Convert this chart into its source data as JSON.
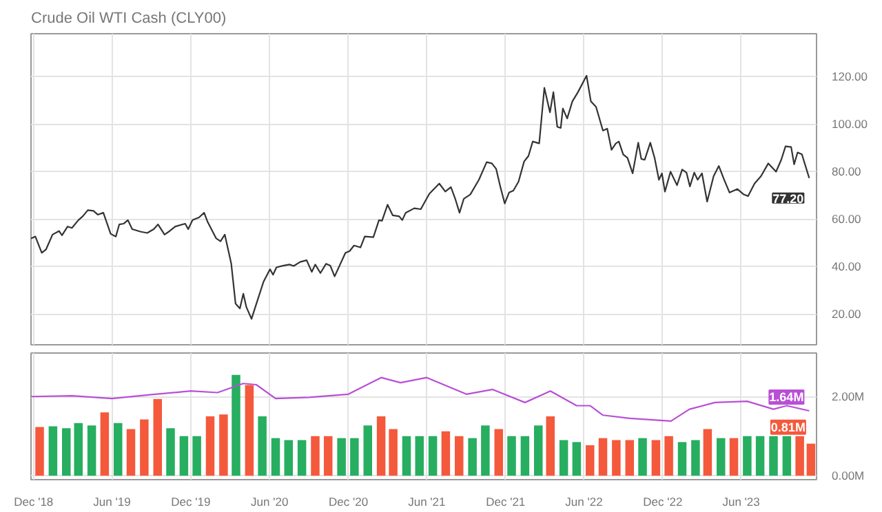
{
  "chart_data": [
    {
      "type": "line",
      "title": "Crude Oil WTI Cash (CLY00)",
      "color": "#333333",
      "tick_labels": "y",
      "grid": true,
      "x": [
        "2018-11-25",
        "2018-12-05",
        "2018-12-20",
        "2018-12-30",
        "2019-01-14",
        "2019-01-29",
        "2019-02-05",
        "2019-02-18",
        "2019-02-28",
        "2019-03-15",
        "2019-03-25",
        "2019-04-06",
        "2019-04-19",
        "2019-04-29",
        "2019-05-12",
        "2019-05-29",
        "2019-06-10",
        "2019-06-18",
        "2019-06-28",
        "2019-07-08",
        "2019-07-18",
        "2019-08-07",
        "2019-08-22",
        "2019-09-06",
        "2019-09-16",
        "2019-10-01",
        "2019-10-13",
        "2019-10-26",
        "2019-11-18",
        "2019-11-25",
        "2019-12-05",
        "2019-12-20",
        "2020-01-01",
        "2020-01-09",
        "2020-01-29",
        "2020-02-08",
        "2020-02-18",
        "2020-03-04",
        "2020-03-14",
        "2020-03-24",
        "2020-04-01",
        "2020-04-08",
        "2020-04-20",
        "2020-05-03",
        "2020-05-18",
        "2020-06-02",
        "2020-06-09",
        "2020-06-17",
        "2020-07-02",
        "2020-07-17",
        "2020-07-27",
        "2020-08-11",
        "2020-08-26",
        "2020-09-07",
        "2020-09-15",
        "2020-09-27",
        "2020-10-10",
        "2020-10-20",
        "2020-10-30",
        "2020-11-24",
        "2020-12-04",
        "2020-12-14",
        "2020-12-29",
        "2021-01-08",
        "2021-01-28",
        "2021-02-10",
        "2021-02-17",
        "2021-03-02",
        "2021-03-14",
        "2021-03-29",
        "2021-04-05",
        "2021-04-13",
        "2021-05-03",
        "2021-05-18",
        "2021-06-07",
        "2021-06-30",
        "2021-07-14",
        "2021-07-27",
        "2021-08-06",
        "2021-08-16",
        "2021-08-26",
        "2021-09-10",
        "2021-09-30",
        "2021-10-18",
        "2021-10-30",
        "2021-11-09",
        "2021-11-19",
        "2021-11-29",
        "2021-12-09",
        "2021-12-19",
        "2021-12-31",
        "2022-01-13",
        "2022-01-23",
        "2022-02-02",
        "2022-02-17",
        "2022-03-01",
        "2022-03-14",
        "2022-03-22",
        "2022-03-31",
        "2022-04-08",
        "2022-04-13",
        "2022-04-23",
        "2022-05-05",
        "2022-05-18",
        "2022-06-07",
        "2022-06-17",
        "2022-06-29",
        "2022-07-15",
        "2022-07-25",
        "2022-08-04",
        "2022-08-14",
        "2022-08-21",
        "2022-08-31",
        "2022-09-10",
        "2022-09-22",
        "2022-10-05",
        "2022-10-12",
        "2022-10-20",
        "2022-11-02",
        "2022-11-12",
        "2022-11-22",
        "2022-11-29",
        "2022-12-06",
        "2022-12-19",
        "2023-01-03",
        "2023-01-15",
        "2023-01-25",
        "2023-02-02",
        "2023-02-12",
        "2023-02-20",
        "2023-03-02",
        "2023-03-14",
        "2023-03-29",
        "2023-04-10",
        "2023-04-21",
        "2023-05-05",
        "2023-05-23",
        "2023-06-07",
        "2023-06-17",
        "2023-07-02",
        "2023-07-17",
        "2023-08-03",
        "2023-08-21",
        "2023-09-02",
        "2023-09-12",
        "2023-09-25",
        "2023-10-02",
        "2023-10-10",
        "2023-10-20",
        "2023-11-06"
      ],
      "values": [
        51.8,
        52.6,
        45.7,
        47.2,
        53.4,
        54.9,
        53.1,
        56.8,
        56.2,
        59.5,
        61.1,
        63.7,
        63.4,
        61.8,
        62.6,
        53.7,
        52.6,
        57.7,
        58.0,
        59.5,
        55.7,
        54.6,
        54.1,
        55.7,
        57.7,
        53.4,
        54.9,
        56.8,
        58.0,
        55.7,
        59.5,
        60.6,
        62.6,
        58.8,
        51.8,
        50.6,
        53.4,
        41.1,
        24.3,
        22.3,
        28.5,
        22.9,
        17.9,
        25.2,
        33.6,
        38.8,
        36.5,
        39.6,
        40.3,
        40.8,
        40.2,
        41.9,
        42.6,
        37.7,
        40.8,
        37.2,
        41.1,
        40.3,
        35.8,
        45.7,
        46.5,
        48.8,
        48.0,
        52.6,
        52.3,
        59.5,
        59.2,
        66.0,
        61.5,
        61.1,
        59.5,
        62.6,
        64.5,
        64.1,
        70.6,
        74.9,
        71.5,
        73.4,
        68.5,
        62.6,
        68.5,
        70.3,
        76.5,
        83.9,
        83.4,
        81.1,
        73.4,
        66.5,
        71.1,
        71.9,
        75.7,
        84.2,
        86.5,
        92.6,
        91.8,
        115.2,
        104.9,
        113.4,
        98.8,
        98.3,
        106.5,
        102.3,
        109.5,
        113.4,
        120.3,
        109.5,
        107.2,
        97.2,
        98.0,
        89.1,
        91.8,
        92.6,
        87.2,
        85.7,
        79.2,
        92.1,
        85.3,
        84.9,
        92.1,
        85.7,
        76.5,
        79.2,
        71.5,
        79.9,
        74.2,
        80.8,
        79.5,
        73.7,
        79.5,
        76.5,
        79.2,
        67.3,
        78.0,
        82.3,
        77.2,
        71.1,
        72.6,
        70.3,
        69.6,
        74.9,
        78.0,
        83.4,
        79.9,
        84.9,
        90.6,
        90.3,
        83.0,
        88.0,
        87.2,
        77.2
      ],
      "xlim": [
        "2018-11-25",
        "2023-11-23"
      ],
      "xticks": [
        {
          "value": "2018-12-01",
          "label": null
        },
        {
          "value": "2019-06-01",
          "label": null
        },
        {
          "value": "2019-12-01",
          "label": null
        },
        {
          "value": "2020-06-01",
          "label": null
        },
        {
          "value": "2020-12-01",
          "label": null
        },
        {
          "value": "2021-06-01",
          "label": null
        },
        {
          "value": "2021-12-01",
          "label": null
        },
        {
          "value": "2022-06-01",
          "label": null
        },
        {
          "value": "2022-12-01",
          "label": null
        },
        {
          "value": "2023-06-01",
          "label": null
        }
      ],
      "ylim": [
        7,
        138
      ],
      "yticks": [
        {
          "value": 20,
          "label": "20.00"
        },
        {
          "value": 40,
          "label": "40.00"
        },
        {
          "value": 60,
          "label": "60.00"
        },
        {
          "value": 80,
          "label": "80.00"
        },
        {
          "value": 100,
          "label": "100.00"
        },
        {
          "value": 120,
          "label": "120.00"
        }
      ],
      "annotations": [
        {
          "text": "77.20",
          "x": "2023-11-06",
          "y": 77.2
        }
      ]
    },
    {
      "type": "bar",
      "grid": true,
      "series": [
        {
          "type": "bar",
          "x": [
            "2018-12-15",
            "2019-01-15",
            "2019-02-15",
            "2019-03-15",
            "2019-04-15",
            "2019-05-15",
            "2019-06-15",
            "2019-07-15",
            "2019-08-15",
            "2019-09-15",
            "2019-10-15",
            "2019-11-15",
            "2019-12-15",
            "2020-01-15",
            "2020-02-15",
            "2020-03-15",
            "2020-04-15",
            "2020-05-15",
            "2020-06-15",
            "2020-07-15",
            "2020-08-15",
            "2020-09-15",
            "2020-10-15",
            "2020-11-15",
            "2020-12-15",
            "2021-01-15",
            "2021-02-15",
            "2021-03-15",
            "2021-04-15",
            "2021-05-15",
            "2021-06-15",
            "2021-07-15",
            "2021-08-15",
            "2021-09-15",
            "2021-10-15",
            "2021-11-15",
            "2021-12-15",
            "2022-01-15",
            "2022-02-15",
            "2022-03-15",
            "2022-04-15",
            "2022-05-15",
            "2022-06-15",
            "2022-07-15",
            "2022-08-15",
            "2022-09-15",
            "2022-10-15",
            "2022-11-15",
            "2022-12-15",
            "2023-01-15",
            "2023-02-15",
            "2023-03-15",
            "2023-04-15",
            "2023-05-15",
            "2023-06-15",
            "2023-07-15",
            "2023-08-15",
            "2023-09-15",
            "2023-10-15",
            "2023-11-10"
          ],
          "values": [
            1.23,
            1.25,
            1.2,
            1.33,
            1.27,
            1.6,
            1.33,
            1.18,
            1.42,
            1.94,
            1.2,
            1.0,
            1.0,
            1.5,
            1.55,
            2.55,
            2.29,
            1.5,
            0.95,
            0.9,
            0.9,
            1.0,
            1.0,
            0.95,
            0.95,
            1.27,
            1.5,
            1.18,
            1.0,
            1.0,
            1.0,
            1.12,
            1.0,
            0.95,
            1.27,
            1.18,
            1.0,
            1.0,
            1.27,
            1.5,
            0.9,
            0.85,
            0.77,
            0.95,
            0.9,
            0.9,
            0.95,
            0.9,
            1.0,
            0.85,
            0.9,
            1.18,
            0.95,
            0.95,
            1.0,
            1.0,
            1.0,
            1.0,
            1.0,
            0.81
          ],
          "colors": [
            "#f4593c",
            "#27ae60",
            "#27ae60",
            "#27ae60",
            "#27ae60",
            "#f4593c",
            "#27ae60",
            "#f4593c",
            "#f4593c",
            "#f4593c",
            "#27ae60",
            "#27ae60",
            "#27ae60",
            "#f4593c",
            "#f4593c",
            "#27ae60",
            "#f4593c",
            "#27ae60",
            "#27ae60",
            "#27ae60",
            "#27ae60",
            "#f4593c",
            "#f4593c",
            "#27ae60",
            "#27ae60",
            "#27ae60",
            "#f4593c",
            "#f4593c",
            "#27ae60",
            "#27ae60",
            "#27ae60",
            "#f4593c",
            "#f4593c",
            "#27ae60",
            "#27ae60",
            "#f4593c",
            "#27ae60",
            "#27ae60",
            "#27ae60",
            "#f4593c",
            "#27ae60",
            "#27ae60",
            "#f4593c",
            "#f4593c",
            "#f4593c",
            "#f4593c",
            "#27ae60",
            "#f4593c",
            "#f4593c",
            "#27ae60",
            "#27ae60",
            "#f4593c",
            "#27ae60",
            "#f4593c",
            "#27ae60",
            "#27ae60",
            "#27ae60",
            "#27ae60",
            "#f4593c",
            "#f4593c"
          ]
        },
        {
          "type": "line",
          "color": "#b84fd6",
          "x": [
            "2018-11-25",
            "2019-03-01",
            "2019-06-01",
            "2019-09-01",
            "2019-12-01",
            "2020-02-01",
            "2020-04-01",
            "2020-05-01",
            "2020-06-15",
            "2020-09-01",
            "2020-12-01",
            "2021-02-15",
            "2021-04-01",
            "2021-06-01",
            "2021-09-01",
            "2021-11-01",
            "2022-01-15",
            "2022-03-15",
            "2022-05-15",
            "2022-06-15",
            "2022-07-15",
            "2022-09-15",
            "2022-12-20",
            "2023-02-01",
            "2023-04-01",
            "2023-06-15",
            "2023-08-15",
            "2023-09-15",
            "2023-11-06"
          ],
          "values": [
            2.0,
            2.02,
            1.95,
            2.05,
            2.14,
            2.1,
            2.33,
            2.3,
            1.95,
            1.98,
            2.06,
            2.48,
            2.35,
            2.48,
            2.06,
            2.18,
            1.85,
            2.14,
            1.77,
            1.77,
            1.53,
            1.45,
            1.38,
            1.68,
            1.85,
            1.88,
            1.68,
            1.77,
            1.64
          ]
        }
      ],
      "xlim": [
        "2018-11-25",
        "2023-11-23"
      ],
      "xticks": [
        {
          "value": "2018-12-01",
          "label": "Dec '18"
        },
        {
          "value": "2019-06-01",
          "label": "Jun '19"
        },
        {
          "value": "2019-12-01",
          "label": "Dec '19"
        },
        {
          "value": "2020-06-01",
          "label": "Jun '20"
        },
        {
          "value": "2020-12-01",
          "label": "Dec '20"
        },
        {
          "value": "2021-06-01",
          "label": "Jun '21"
        },
        {
          "value": "2021-12-01",
          "label": "Dec '21"
        },
        {
          "value": "2022-06-01",
          "label": "Jun '22"
        },
        {
          "value": "2022-12-01",
          "label": "Dec '22"
        },
        {
          "value": "2023-06-01",
          "label": "Jun '23"
        }
      ],
      "ylim": [
        -0.1,
        3.1
      ],
      "yticks": [
        {
          "value": 0,
          "label": "0.00M"
        },
        {
          "value": 2,
          "label": "2.00M"
        }
      ],
      "annotations": [
        {
          "text": "0.81M",
          "x": "2023-11-10",
          "y": 0.81
        },
        {
          "text": "1.64M",
          "x": "2023-11-06",
          "y": 1.64
        }
      ]
    }
  ]
}
